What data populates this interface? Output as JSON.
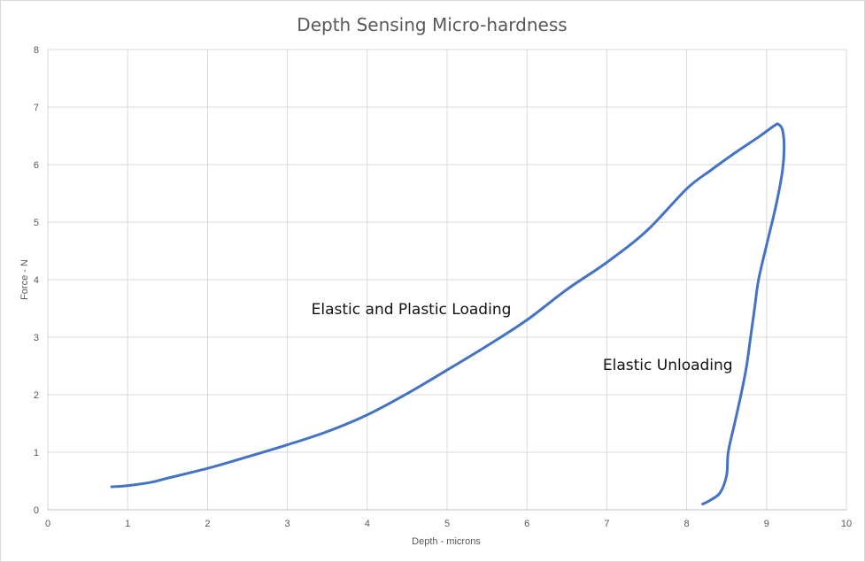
{
  "chart_data": {
    "type": "line",
    "title": "Depth Sensing Micro-hardness",
    "xlabel": "Depth - microns",
    "ylabel": "Force - N",
    "xlim": [
      0,
      10
    ],
    "ylim": [
      0,
      8
    ],
    "x_ticks": [
      0,
      1,
      2,
      3,
      4,
      5,
      6,
      7,
      8,
      9,
      10
    ],
    "y_ticks": [
      0,
      1,
      2,
      3,
      4,
      5,
      6,
      7,
      8
    ],
    "grid": true,
    "legend": "none",
    "series": [
      {
        "color": "#4472c4",
        "points": [
          [
            0.8,
            0.4
          ],
          [
            1.0,
            0.42
          ],
          [
            1.3,
            0.48
          ],
          [
            1.5,
            0.55
          ],
          [
            2.0,
            0.72
          ],
          [
            2.5,
            0.92
          ],
          [
            3.0,
            1.13
          ],
          [
            3.5,
            1.36
          ],
          [
            4.0,
            1.65
          ],
          [
            4.5,
            2.02
          ],
          [
            5.0,
            2.43
          ],
          [
            5.5,
            2.85
          ],
          [
            6.0,
            3.3
          ],
          [
            6.5,
            3.83
          ],
          [
            7.0,
            4.3
          ],
          [
            7.5,
            4.85
          ],
          [
            8.0,
            5.58
          ],
          [
            8.3,
            5.9
          ],
          [
            8.6,
            6.2
          ],
          [
            8.9,
            6.48
          ],
          [
            9.1,
            6.68
          ],
          [
            9.15,
            6.7
          ],
          [
            9.2,
            6.6
          ],
          [
            9.22,
            6.3
          ],
          [
            9.2,
            5.9
          ],
          [
            9.12,
            5.3
          ],
          [
            9.0,
            4.6
          ],
          [
            8.9,
            4.0
          ],
          [
            8.85,
            3.5
          ],
          [
            8.8,
            3.0
          ],
          [
            8.75,
            2.5
          ],
          [
            8.68,
            2.0
          ],
          [
            8.6,
            1.5
          ],
          [
            8.52,
            1.0
          ],
          [
            8.5,
            0.6
          ],
          [
            8.42,
            0.3
          ],
          [
            8.3,
            0.17
          ],
          [
            8.2,
            0.1
          ]
        ]
      }
    ],
    "annotations": [
      {
        "text": "Elastic and Plastic Loading",
        "x": 3.3,
        "y": 3.4
      },
      {
        "text": "Elastic Unloading",
        "x": 6.95,
        "y": 2.43
      }
    ]
  }
}
